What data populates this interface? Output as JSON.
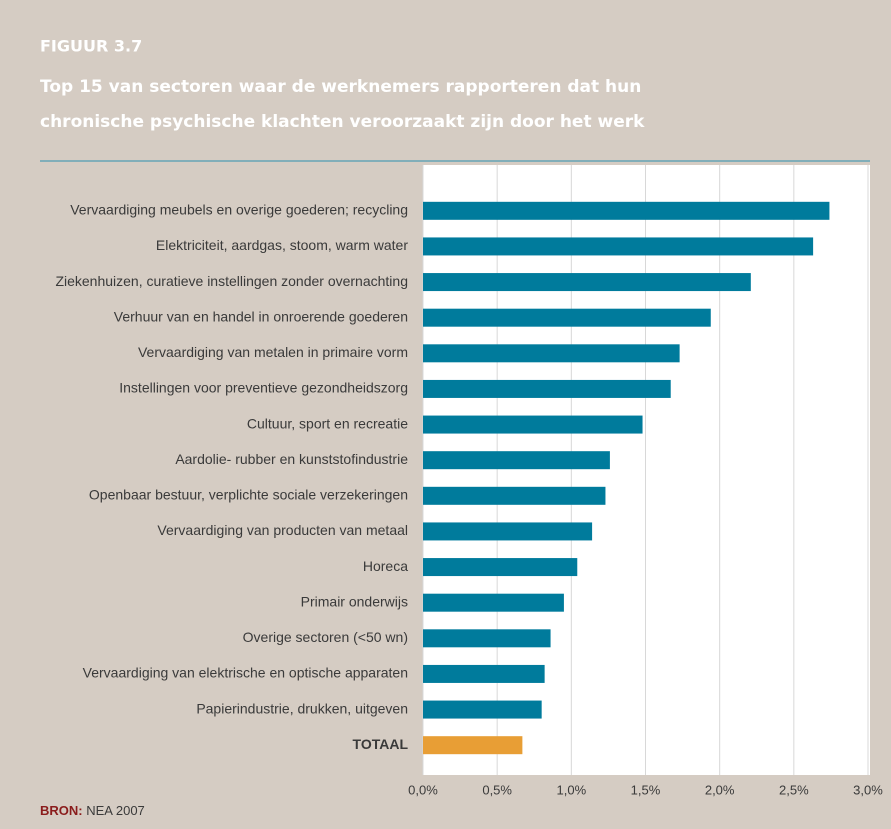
{
  "chart_data": {
    "type": "barh",
    "label": "FIGUUR 3.7",
    "title_lines": [
      "Top 15 van sectoren waar de werknemers rapporteren dat hun",
      "chronische psychische klachten veroorzaakt zijn door het werk"
    ],
    "categories": [
      "Vervaardiging meubels en overige goederen; recycling",
      "Elektriciteit, aardgas, stoom, warm water",
      "Ziekenhuizen, curatieve instellingen zonder overnachting",
      "Verhuur van en handel in onroerende goederen",
      "Vervaardiging van metalen in primaire vorm",
      "Instellingen voor preventieve gezondheidszorg",
      "Cultuur, sport en recreatie",
      "Aardolie- rubber en kunststofindustrie",
      "Openbaar bestuur, verplichte sociale verzekeringen",
      "Vervaardiging van producten van metaal",
      "Horeca",
      "Primair onderwijs",
      "Overige sectoren (<50 wn)",
      "Vervaardiging van elektrische en optische apparaten",
      "Papierindustrie, drukken, uitgeven",
      "TOTAAL"
    ],
    "values": [
      2.74,
      2.63,
      2.21,
      1.94,
      1.73,
      1.67,
      1.48,
      1.26,
      1.23,
      1.14,
      1.04,
      0.95,
      0.86,
      0.82,
      0.8,
      0.67
    ],
    "colors": [
      "#007b9c",
      "#007b9c",
      "#007b9c",
      "#007b9c",
      "#007b9c",
      "#007b9c",
      "#007b9c",
      "#007b9c",
      "#007b9c",
      "#007b9c",
      "#007b9c",
      "#007b9c",
      "#007b9c",
      "#007b9c",
      "#007b9c",
      "#e89e35"
    ],
    "xlim": [
      0,
      3
    ],
    "xticks": [
      {
        "value": 0,
        "label": "0,0%"
      },
      {
        "value": 0.5,
        "label": "0,5%"
      },
      {
        "value": 1,
        "label": "1,0%"
      },
      {
        "value": 1.5,
        "label": "1,5%"
      },
      {
        "value": 2,
        "label": "2,0%"
      },
      {
        "value": 2.5,
        "label": "2,5%"
      },
      {
        "value": 3,
        "label": "3,0%"
      }
    ],
    "grid": true,
    "source_label": "BRON:",
    "source": "NEA 2007"
  }
}
